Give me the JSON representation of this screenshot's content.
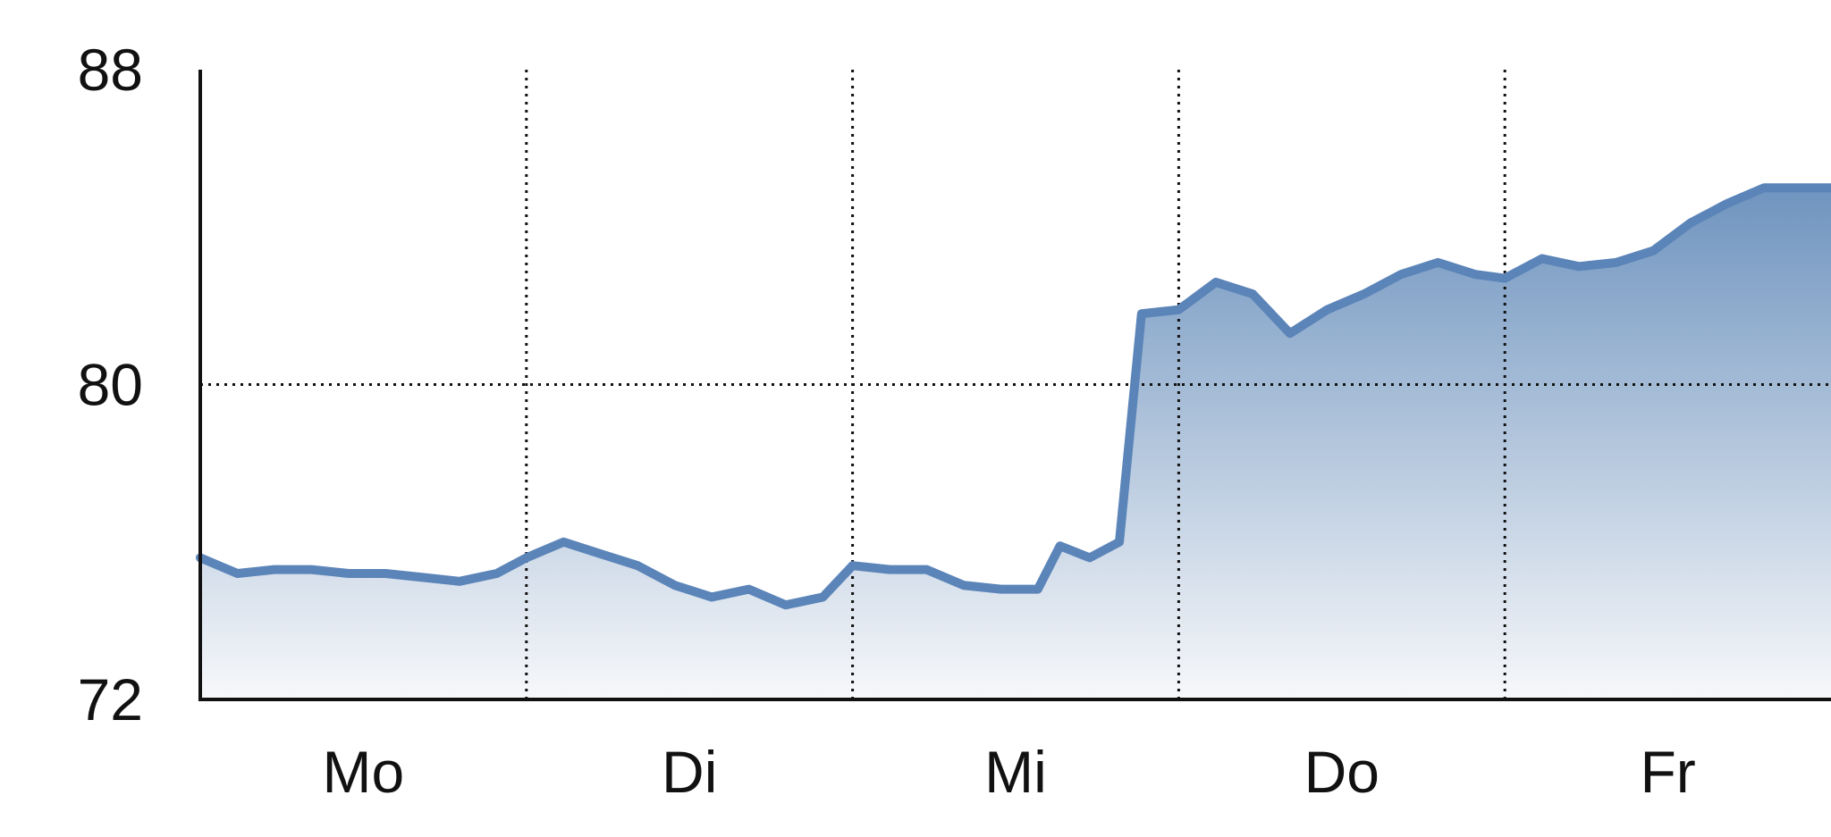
{
  "chart_data": {
    "type": "area",
    "title": "",
    "xlabel": "",
    "ylabel": "",
    "ylim": [
      72,
      88
    ],
    "y_ticks": [
      72,
      80,
      88
    ],
    "x_ticks": [
      "Mo",
      "Di",
      "Mi",
      "Do",
      "Fr"
    ],
    "grid": {
      "vertical": true,
      "horizontal_at": [
        80
      ],
      "style": "dotted"
    },
    "legend": "none",
    "colors": {
      "line": "#5b84b8",
      "fill_top": "#6f94bf",
      "fill_bottom": "#f7f8fa",
      "axis": "#111111",
      "grid": "#111111",
      "text": "#111111"
    },
    "series": [
      {
        "x": [
          0.0,
          0.114,
          0.227,
          0.341,
          0.455,
          0.568,
          0.682,
          0.795,
          0.909,
          1.0,
          1.114,
          1.227,
          1.341,
          1.455,
          1.568,
          1.682,
          1.795,
          1.909,
          2.0,
          2.114,
          2.227,
          2.341,
          2.455,
          2.568,
          2.636,
          2.727,
          2.818,
          2.886,
          3.0,
          3.114,
          3.227,
          3.341,
          3.455,
          3.568,
          3.682,
          3.795,
          3.909,
          4.0,
          4.114,
          4.227,
          4.341,
          4.455,
          4.568,
          4.682,
          4.795,
          4.909,
          5.0
        ],
        "values": [
          75.6,
          75.2,
          75.3,
          75.3,
          75.2,
          75.2,
          75.1,
          75.0,
          75.2,
          75.6,
          76.0,
          75.7,
          75.4,
          74.9,
          74.6,
          74.8,
          74.4,
          74.6,
          75.4,
          75.3,
          75.3,
          74.9,
          74.8,
          74.8,
          75.9,
          75.6,
          76.0,
          81.8,
          81.9,
          82.6,
          82.3,
          81.3,
          81.9,
          82.3,
          82.8,
          83.1,
          82.8,
          82.7,
          83.2,
          83.0,
          83.1,
          83.4,
          84.1,
          84.6,
          85.0,
          85.0,
          85.0
        ]
      }
    ]
  }
}
